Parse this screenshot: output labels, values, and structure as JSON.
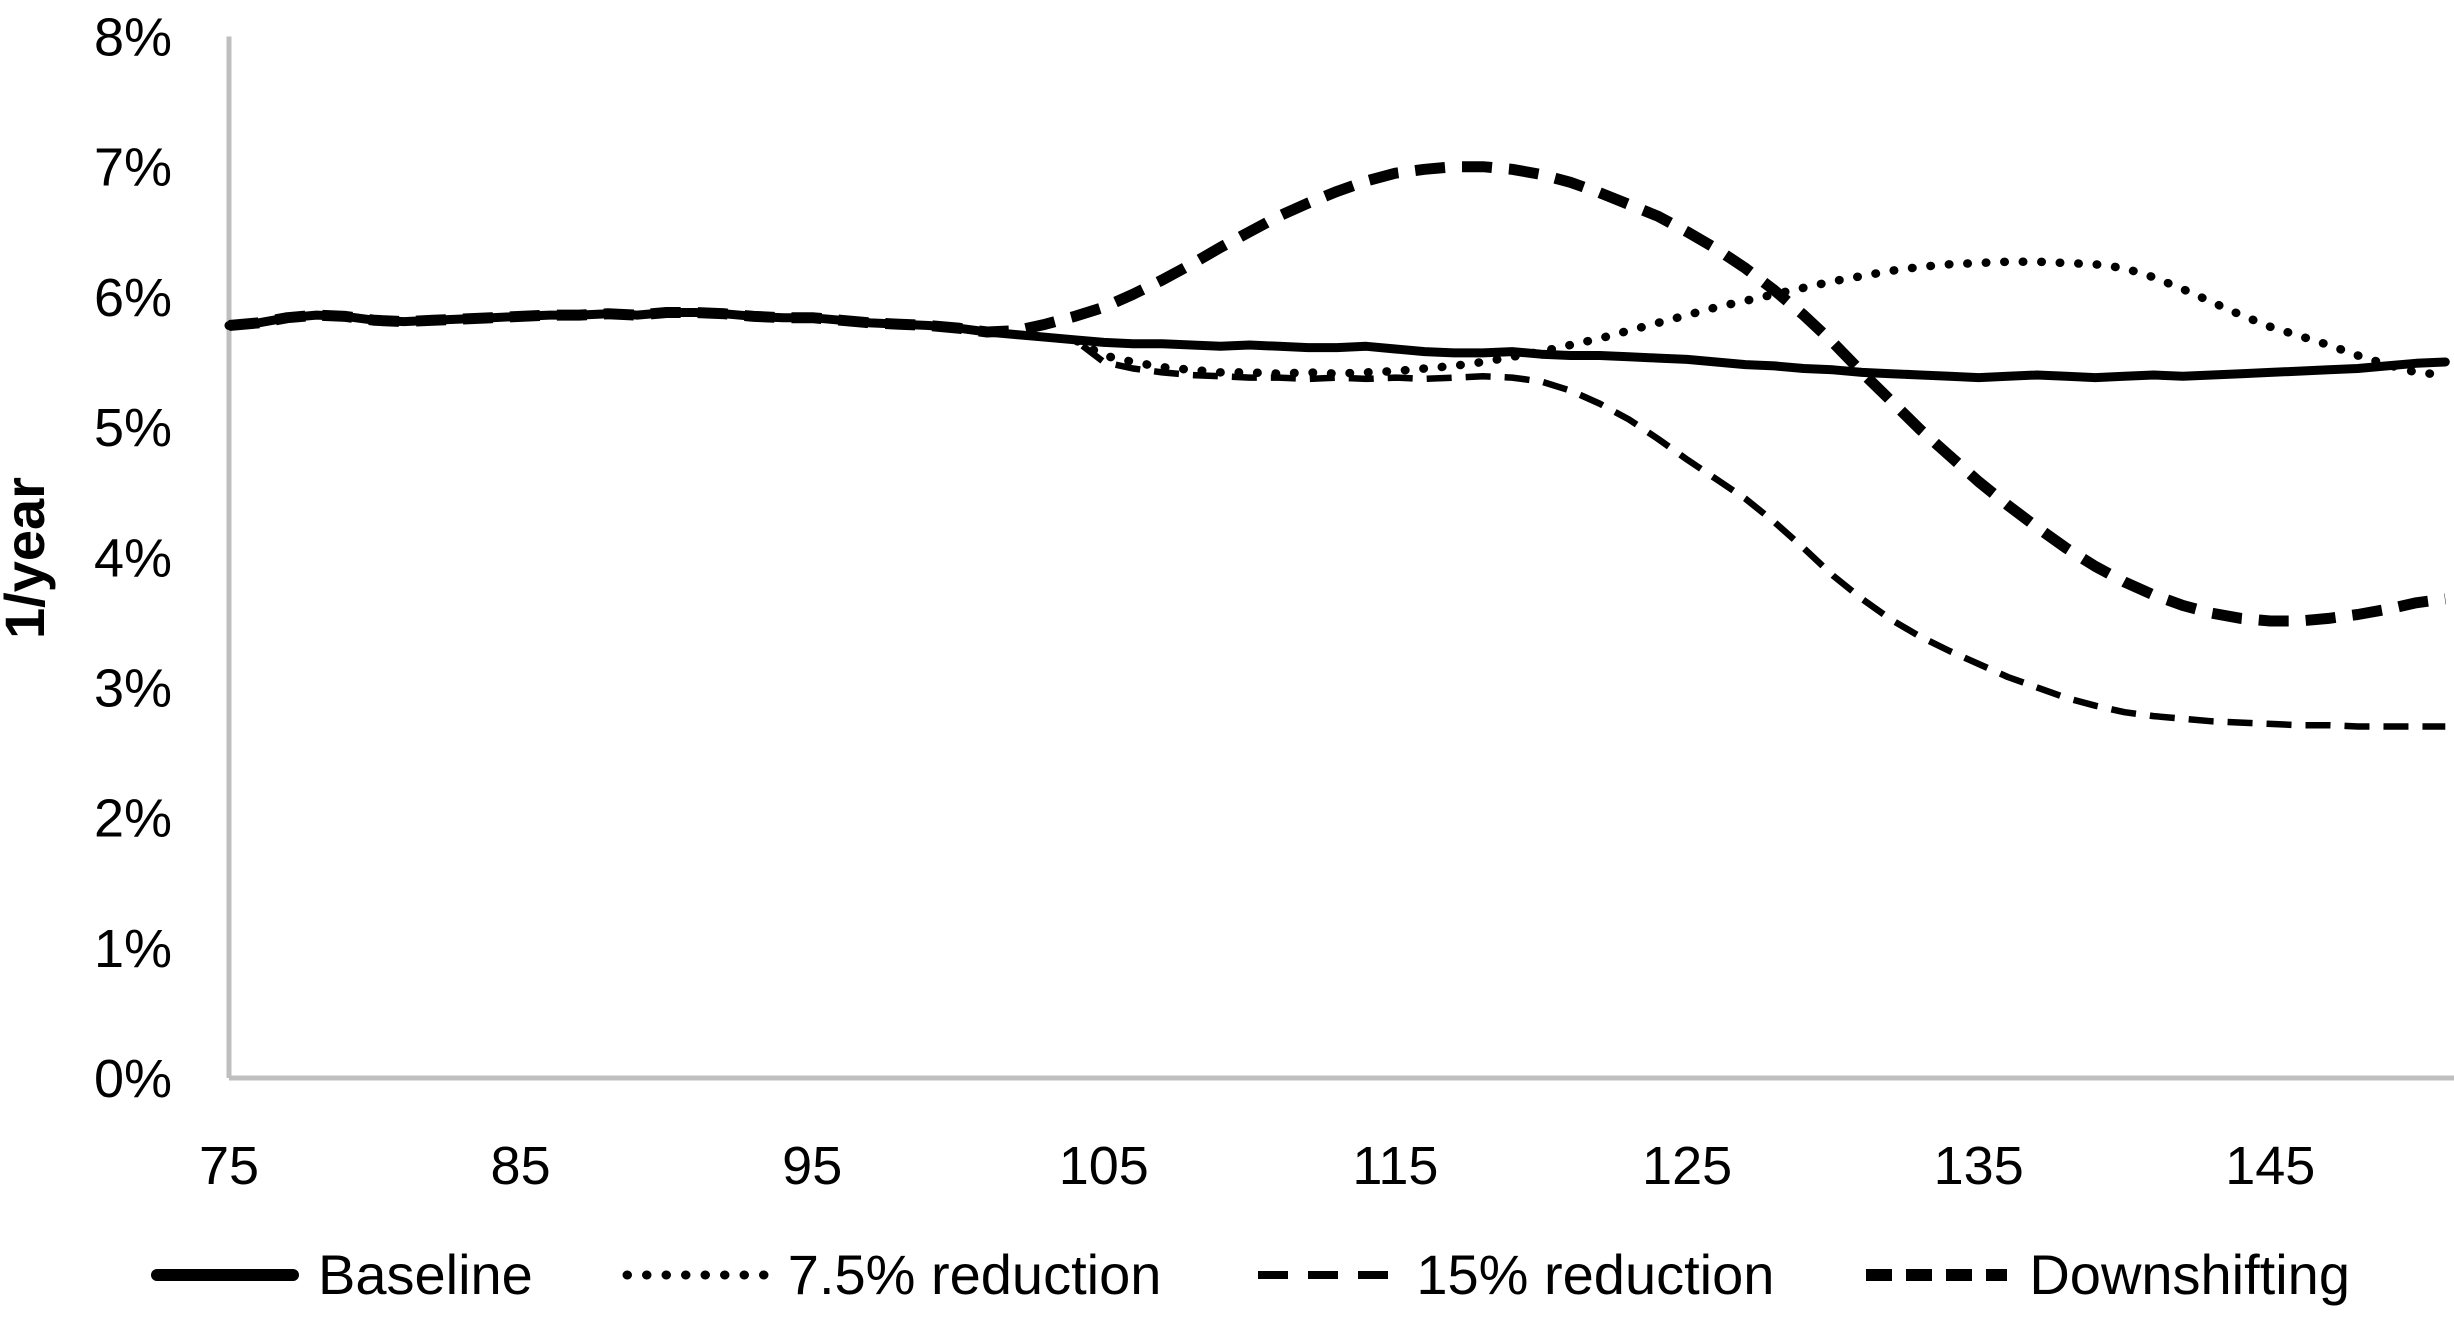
{
  "chart_data": {
    "type": "line",
    "title": "",
    "xlabel": "",
    "ylabel": "1/year",
    "xlim": [
      75,
      151.3
    ],
    "ylim": [
      0,
      8
    ],
    "grid": false,
    "legend_position": "bottom",
    "colors": {
      "line": "#000000",
      "axis": "#BFBFBF"
    },
    "x_ticks": {
      "values": [
        75,
        85,
        95,
        105,
        115,
        125,
        135,
        145
      ],
      "labels": [
        "75",
        "85",
        "95",
        "105",
        "115",
        "125",
        "135",
        "145"
      ]
    },
    "y_ticks": {
      "values": [
        0,
        1,
        2,
        3,
        4,
        5,
        6,
        7,
        8
      ],
      "labels": [
        "0%",
        "1%",
        "2%",
        "3%",
        "4%",
        "5%",
        "6%",
        "7%",
        "8%"
      ]
    },
    "x": [
      75,
      76,
      77,
      78,
      79,
      80,
      81,
      82,
      83,
      84,
      85,
      86,
      87,
      88,
      89,
      90,
      91,
      92,
      93,
      94,
      95,
      96,
      97,
      98,
      99,
      100,
      101,
      102,
      103,
      104,
      105,
      106,
      107,
      108,
      109,
      110,
      111,
      112,
      113,
      114,
      115,
      116,
      117,
      118,
      119,
      120,
      121,
      122,
      123,
      124,
      125,
      126,
      127,
      128,
      129,
      130,
      131,
      132,
      133,
      134,
      135,
      136,
      137,
      138,
      139,
      140,
      141,
      142,
      143,
      144,
      145,
      146,
      147,
      148,
      149,
      150,
      151
    ],
    "series": [
      {
        "name": "Baseline",
        "line_style": "solid",
        "y": [
          5.78,
          5.8,
          5.84,
          5.86,
          5.85,
          5.82,
          5.81,
          5.82,
          5.83,
          5.84,
          5.85,
          5.86,
          5.86,
          5.87,
          5.86,
          5.88,
          5.88,
          5.87,
          5.85,
          5.84,
          5.84,
          5.82,
          5.8,
          5.79,
          5.78,
          5.76,
          5.73,
          5.71,
          5.69,
          5.67,
          5.65,
          5.64,
          5.64,
          5.63,
          5.62,
          5.63,
          5.62,
          5.61,
          5.61,
          5.62,
          5.6,
          5.58,
          5.57,
          5.57,
          5.58,
          5.56,
          5.55,
          5.55,
          5.54,
          5.53,
          5.52,
          5.5,
          5.48,
          5.47,
          5.45,
          5.44,
          5.42,
          5.41,
          5.4,
          5.39,
          5.38,
          5.39,
          5.4,
          5.39,
          5.38,
          5.39,
          5.4,
          5.39,
          5.4,
          5.41,
          5.42,
          5.43,
          5.44,
          5.45,
          5.47,
          5.49,
          5.5
        ]
      },
      {
        "name": "7.5% reduction",
        "line_style": "dotted",
        "y": [
          5.78,
          5.8,
          5.84,
          5.86,
          5.85,
          5.82,
          5.81,
          5.82,
          5.83,
          5.84,
          5.85,
          5.86,
          5.86,
          5.87,
          5.86,
          5.88,
          5.88,
          5.87,
          5.85,
          5.84,
          5.84,
          5.82,
          5.8,
          5.79,
          5.78,
          5.76,
          5.73,
          5.71,
          5.69,
          5.67,
          5.55,
          5.5,
          5.46,
          5.44,
          5.42,
          5.42,
          5.41,
          5.42,
          5.41,
          5.42,
          5.43,
          5.45,
          5.47,
          5.5,
          5.54,
          5.58,
          5.63,
          5.68,
          5.74,
          5.8,
          5.86,
          5.92,
          5.97,
          6.02,
          6.07,
          6.12,
          6.16,
          6.2,
          6.23,
          6.25,
          6.26,
          6.27,
          6.27,
          6.26,
          6.25,
          6.22,
          6.15,
          6.06,
          5.96,
          5.86,
          5.77,
          5.7,
          5.63,
          5.55,
          5.48,
          5.42,
          5.4
        ]
      },
      {
        "name": "15% reduction",
        "line_style": "dashed",
        "y": [
          5.78,
          5.8,
          5.84,
          5.86,
          5.85,
          5.82,
          5.81,
          5.82,
          5.83,
          5.84,
          5.85,
          5.86,
          5.86,
          5.87,
          5.86,
          5.88,
          5.88,
          5.87,
          5.85,
          5.84,
          5.84,
          5.82,
          5.8,
          5.79,
          5.78,
          5.76,
          5.73,
          5.71,
          5.69,
          5.67,
          5.5,
          5.45,
          5.42,
          5.4,
          5.39,
          5.38,
          5.38,
          5.37,
          5.38,
          5.37,
          5.38,
          5.37,
          5.38,
          5.39,
          5.38,
          5.35,
          5.28,
          5.18,
          5.06,
          4.91,
          4.75,
          4.6,
          4.45,
          4.27,
          4.07,
          3.86,
          3.68,
          3.52,
          3.39,
          3.28,
          3.18,
          3.08,
          3.0,
          2.92,
          2.86,
          2.81,
          2.78,
          2.76,
          2.74,
          2.73,
          2.72,
          2.71,
          2.71,
          2.7,
          2.7,
          2.7,
          2.7
        ]
      },
      {
        "name": "Downshifting",
        "line_style": "thick-dashed",
        "y": [
          5.78,
          5.8,
          5.84,
          5.86,
          5.85,
          5.82,
          5.81,
          5.82,
          5.83,
          5.84,
          5.85,
          5.86,
          5.86,
          5.87,
          5.86,
          5.88,
          5.88,
          5.87,
          5.85,
          5.84,
          5.84,
          5.82,
          5.8,
          5.79,
          5.78,
          5.76,
          5.73,
          5.74,
          5.79,
          5.85,
          5.92,
          6.02,
          6.13,
          6.25,
          6.38,
          6.5,
          6.62,
          6.72,
          6.81,
          6.89,
          6.95,
          6.98,
          7.0,
          7.0,
          6.98,
          6.94,
          6.88,
          6.8,
          6.71,
          6.62,
          6.5,
          6.37,
          6.22,
          6.05,
          5.86,
          5.65,
          5.42,
          5.2,
          4.98,
          4.78,
          4.58,
          4.4,
          4.23,
          4.07,
          3.93,
          3.81,
          3.71,
          3.63,
          3.57,
          3.53,
          3.51,
          3.51,
          3.53,
          3.56,
          3.6,
          3.65,
          3.68
        ]
      }
    ]
  },
  "legend": {
    "entries": [
      "Baseline",
      "7.5% reduction",
      "15% reduction",
      "Downshifting"
    ]
  }
}
